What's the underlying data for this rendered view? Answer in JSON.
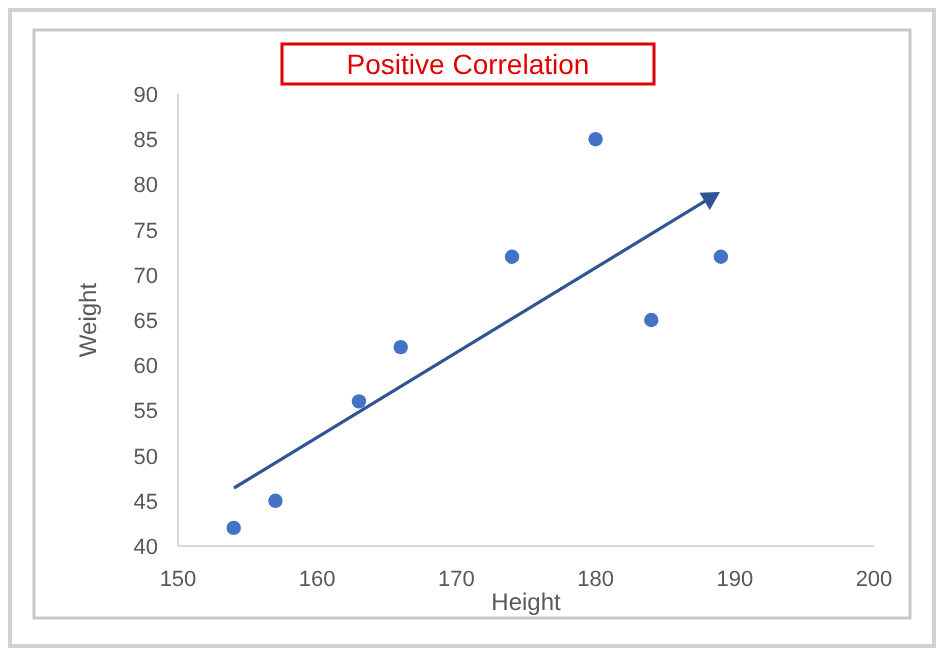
{
  "chart_data": {
    "type": "scatter",
    "title": "Positive Correlation",
    "xlabel": "Height",
    "ylabel": "Weight",
    "x": [
      154,
      157,
      163,
      166,
      174,
      180,
      184,
      189
    ],
    "values": [
      42,
      45,
      56,
      62,
      72,
      85,
      65,
      72
    ],
    "color": "#4472c4",
    "marker": "circle",
    "xlim": [
      150,
      200
    ],
    "xticks": [
      150,
      160,
      170,
      180,
      190,
      200
    ],
    "ylim": [
      40,
      90
    ],
    "yticks": [
      40,
      45,
      50,
      55,
      60,
      65,
      70,
      75,
      80,
      85,
      90
    ],
    "grid": false
  }
}
